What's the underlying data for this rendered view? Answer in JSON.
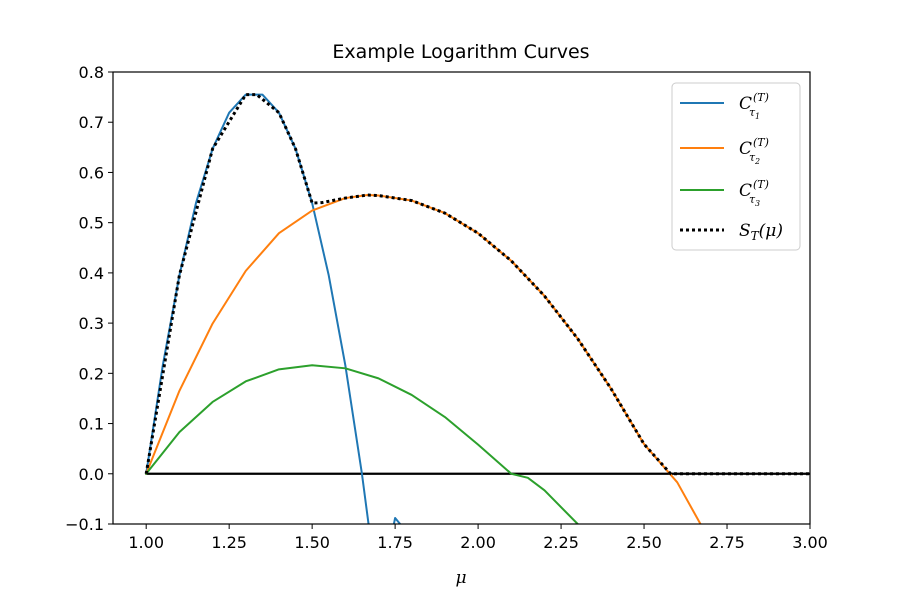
{
  "chart_data": {
    "type": "line",
    "title": "Example Logarithm Curves",
    "xlabel": "μ",
    "ylabel": "",
    "xlim": [
      0.9,
      3.0
    ],
    "ylim": [
      -0.1,
      0.8
    ],
    "xticks": [
      "1.00",
      "1.25",
      "1.50",
      "1.75",
      "2.00",
      "2.25",
      "2.50",
      "2.75",
      "3.00"
    ],
    "yticks": [
      "−0.1",
      "0.0",
      "0.1",
      "0.2",
      "0.3",
      "0.4",
      "0.5",
      "0.6",
      "0.7",
      "0.8"
    ],
    "grid": false,
    "legend_position": "top-right",
    "series": [
      {
        "name": "C_{τ1}^{(T)}",
        "style": "solid",
        "color": "#1f77b4",
        "x": [
          1.0,
          1.05,
          1.1,
          1.15,
          1.2,
          1.25,
          1.3,
          1.333,
          1.35,
          1.4,
          1.45,
          1.5,
          1.55,
          1.6,
          1.65,
          1.7,
          1.75,
          1.765
        ],
        "y": [
          0.0,
          0.216,
          0.395,
          0.539,
          0.647,
          0.719,
          0.755,
          0.755,
          0.755,
          0.719,
          0.647,
          0.539,
          0.395,
          0.216,
          0.0,
          -0.251,
          -0.088,
          -0.1
        ]
      },
      {
        "name": "C_{τ2}^{(T)}",
        "style": "solid",
        "color": "#ff7f0e",
        "x": [
          1.0,
          1.1,
          1.2,
          1.3,
          1.4,
          1.5,
          1.6,
          1.667,
          1.7,
          1.8,
          1.9,
          2.0,
          2.1,
          2.2,
          2.3,
          2.4,
          2.5,
          2.6,
          2.67
        ],
        "y": [
          0.0,
          0.165,
          0.299,
          0.404,
          0.479,
          0.524,
          0.549,
          0.555,
          0.554,
          0.544,
          0.519,
          0.479,
          0.424,
          0.354,
          0.269,
          0.17,
          0.059,
          -0.017,
          -0.1
        ]
      },
      {
        "name": "C_{τ3}^{(T)}",
        "style": "solid",
        "color": "#2ca02c",
        "x": [
          1.0,
          1.1,
          1.2,
          1.3,
          1.4,
          1.5,
          1.6,
          1.7,
          1.8,
          1.9,
          2.0,
          2.1,
          2.15,
          2.2,
          2.3
        ],
        "y": [
          0.0,
          0.083,
          0.143,
          0.184,
          0.208,
          0.216,
          0.21,
          0.19,
          0.157,
          0.113,
          0.058,
          0.0,
          -0.008,
          -0.033,
          -0.1
        ]
      },
      {
        "name": "S_T(μ)",
        "style": "dotted",
        "color": "#000000",
        "x": [
          1.0,
          1.1,
          1.2,
          1.3,
          1.333,
          1.4,
          1.45,
          1.5,
          1.53,
          1.6,
          1.667,
          1.7,
          1.8,
          1.9,
          2.0,
          2.1,
          2.2,
          2.3,
          2.4,
          2.5,
          2.58,
          2.75,
          3.0
        ],
        "y": [
          0.0,
          0.395,
          0.647,
          0.755,
          0.755,
          0.719,
          0.647,
          0.539,
          0.54,
          0.549,
          0.555,
          0.554,
          0.544,
          0.519,
          0.479,
          0.424,
          0.354,
          0.269,
          0.17,
          0.059,
          0.0,
          0.0,
          0.0
        ]
      },
      {
        "name": "",
        "style": "solid",
        "color": "#000000",
        "x": [
          1.0,
          3.0
        ],
        "y": [
          0.0,
          0.0
        ]
      }
    ]
  },
  "legend": {
    "entries": [
      {
        "base": "C",
        "sub": "τ",
        "subsub": "1",
        "sup": "(T)"
      },
      {
        "base": "C",
        "sub": "τ",
        "subsub": "2",
        "sup": "(T)"
      },
      {
        "base": "C",
        "sub": "τ",
        "subsub": "3",
        "sup": "(T)"
      },
      {
        "base": "S",
        "sub": "T",
        "rest": "(μ)"
      }
    ]
  }
}
